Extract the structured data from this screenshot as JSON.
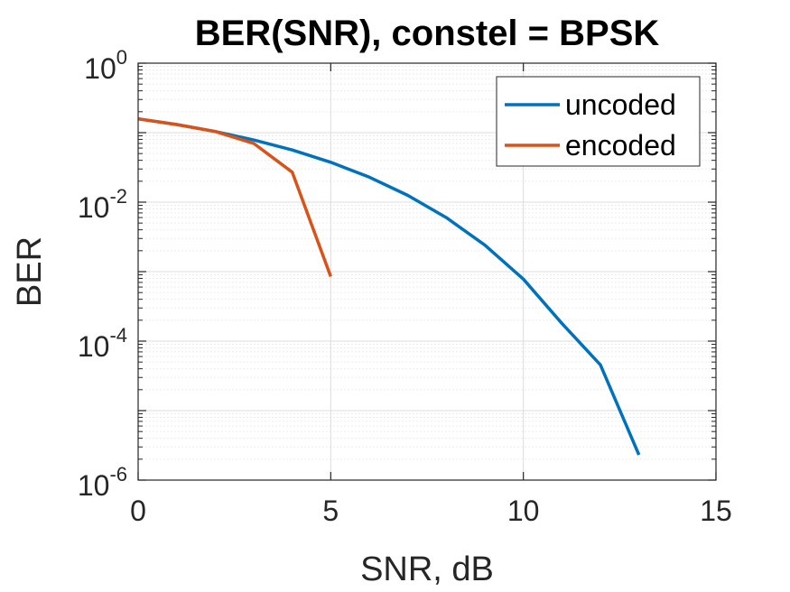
{
  "chart_data": {
    "type": "line",
    "title": "BER(SNR), constel = BPSK",
    "xlabel": "SNR, dB",
    "ylabel": "BER",
    "xlim": [
      0,
      15
    ],
    "ylim": [
      1e-06,
      1
    ],
    "yscale": "log",
    "grid": true,
    "minor_grid": true,
    "legend_position": "top-right",
    "x_ticks": [
      "0",
      "5",
      "10",
      "15"
    ],
    "y_ticks": [
      {
        "base": "10",
        "exp": "0"
      },
      {
        "base": "10",
        "exp": "-2"
      },
      {
        "base": "10",
        "exp": "-4"
      },
      {
        "base": "10",
        "exp": "-6"
      }
    ],
    "series": [
      {
        "name": "uncoded",
        "color": "#0072BD",
        "x": [
          0,
          1,
          2,
          3,
          4,
          5,
          6,
          7,
          8,
          9,
          10,
          11,
          12,
          13
        ],
        "y": [
          0.158,
          0.131,
          0.104,
          0.0786,
          0.0563,
          0.0375,
          0.0229,
          0.0125,
          0.006,
          0.00241,
          0.00078,
          0.00018,
          4.55e-05,
          2.3e-06
        ]
      },
      {
        "name": "encoded",
        "color": "#D95319",
        "x": [
          0,
          1,
          2,
          3,
          4,
          5
        ],
        "y": [
          0.158,
          0.131,
          0.104,
          0.07,
          0.027,
          0.00085
        ]
      }
    ]
  }
}
